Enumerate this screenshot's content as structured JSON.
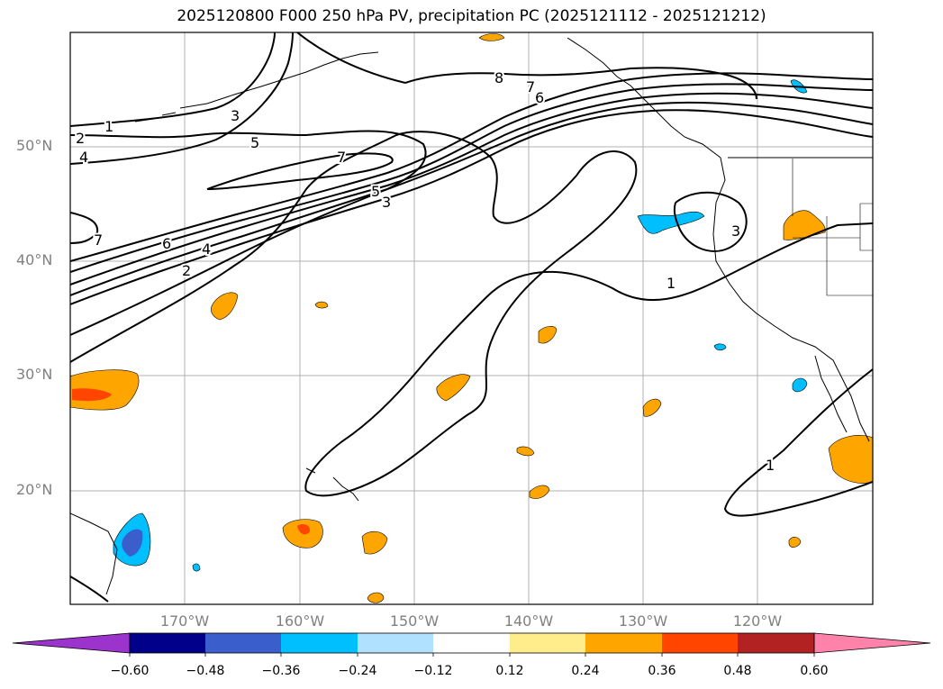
{
  "title": "2025120800 F000 250 hPa PV, precipitation PC (2025121112 - 2025121212)",
  "latitude_labels": [
    "50°N",
    "40°N",
    "30°N",
    "20°N"
  ],
  "longitude_labels": [
    "170°W",
    "160°W",
    "150°W",
    "140°W",
    "130°W",
    "120°W"
  ],
  "colorbar": {
    "ticks": [
      "−0.60",
      "−0.48",
      "−0.36",
      "−0.24",
      "−0.12",
      "0.12",
      "0.24",
      "0.36",
      "0.48",
      "0.60"
    ],
    "colors": [
      "#9b33cc",
      "#00008b",
      "#3a5fcd",
      "#00bfff",
      "#b0e2ff",
      "#ffffff",
      "#ffec8b",
      "#ffa500",
      "#ff4500",
      "#b22222",
      "#ff82ab"
    ]
  },
  "contour_labels": [
    "1",
    "2",
    "3",
    "4",
    "5",
    "6",
    "7",
    "8"
  ],
  "shading_colors": {
    "light_orange": "#ffa500",
    "red_orange": "#ff4500",
    "cyan": "#00bfff",
    "blue": "#3a5fcd"
  }
}
